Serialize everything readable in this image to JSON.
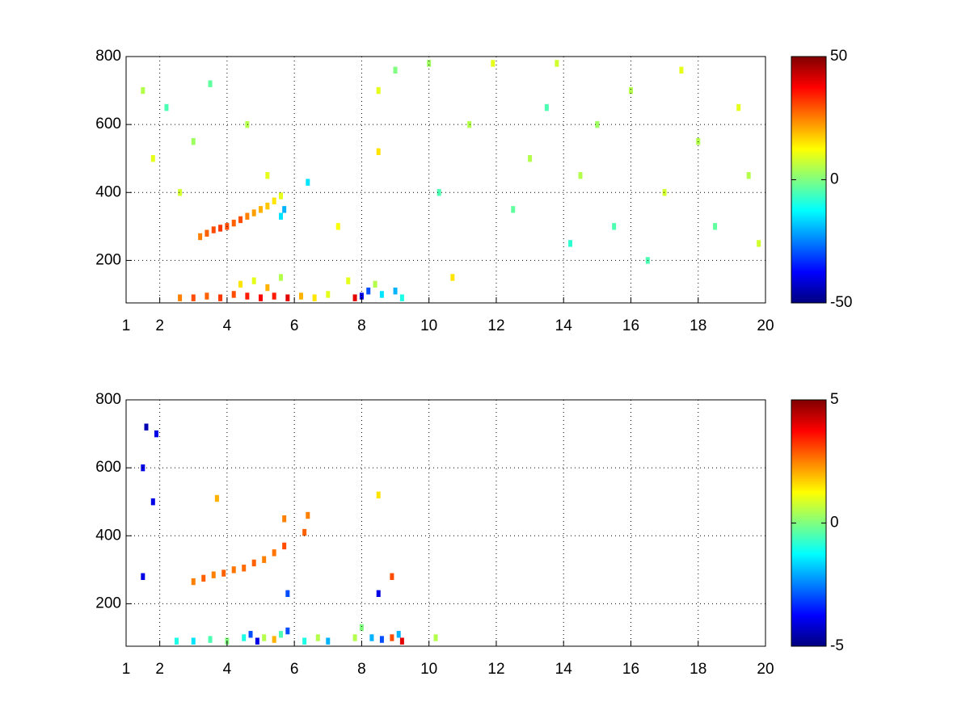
{
  "chart_data": [
    {
      "type": "heatmap",
      "colormap": "jet",
      "grid": true,
      "xlim": [
        1,
        20
      ],
      "ylim": [
        75,
        800
      ],
      "clim": [
        -50,
        50
      ],
      "xticks": [
        1,
        2,
        4,
        6,
        8,
        10,
        12,
        14,
        16,
        18,
        20
      ],
      "yticks": [
        200,
        400,
        600,
        800
      ],
      "cticks": [
        -50,
        0,
        50
      ],
      "x": [
        3.2,
        3.4,
        3.6,
        3.8,
        4.0,
        4.2,
        4.4,
        4.6,
        4.8,
        5.0,
        5.2,
        5.4,
        5.6,
        5.7,
        5.6,
        2.6,
        3.0,
        3.4,
        3.8,
        4.2,
        4.6,
        5.0,
        5.4,
        5.8,
        6.2,
        6.6,
        7.0,
        4.4,
        4.8,
        5.2,
        5.6,
        7.8,
        8.0,
        8.2,
        8.4,
        8.6,
        9.0,
        9.2,
        7.6,
        1.5,
        1.8,
        2.2,
        2.6,
        3.0,
        3.5,
        4.6,
        5.2,
        6.4,
        7.3,
        8.5,
        8.5,
        9.0,
        10.0,
        10.3,
        10.7,
        11.2,
        11.9,
        12.5,
        13.0,
        13.5,
        13.8,
        14.2,
        14.5,
        15.0,
        15.5,
        16.0,
        16.5,
        17.0,
        17.5,
        18.0,
        18.5,
        19.2,
        19.5,
        19.8
      ],
      "y": [
        270,
        280,
        290,
        295,
        300,
        310,
        320,
        330,
        340,
        350,
        360,
        375,
        390,
        350,
        330,
        90,
        90,
        95,
        90,
        100,
        95,
        90,
        95,
        90,
        95,
        90,
        100,
        130,
        140,
        120,
        150,
        90,
        95,
        110,
        130,
        100,
        110,
        90,
        140,
        700,
        500,
        650,
        400,
        550,
        720,
        600,
        450,
        430,
        300,
        520,
        700,
        760,
        780,
        400,
        150,
        600,
        780,
        350,
        500,
        650,
        780,
        250,
        450,
        600,
        300,
        700,
        200,
        400,
        760,
        550,
        300,
        650,
        450,
        250
      ],
      "values": [
        25,
        28,
        30,
        32,
        30,
        28,
        30,
        25,
        22,
        20,
        18,
        15,
        10,
        -20,
        -15,
        25,
        30,
        28,
        32,
        30,
        35,
        38,
        35,
        40,
        20,
        15,
        10,
        15,
        10,
        20,
        5,
        40,
        -40,
        -30,
        5,
        -15,
        -20,
        -10,
        10,
        5,
        10,
        -5,
        8,
        3,
        -3,
        5,
        10,
        -15,
        12,
        15,
        10,
        0,
        3,
        -5,
        15,
        5,
        10,
        -3,
        5,
        -5,
        8,
        -8,
        5,
        3,
        -5,
        5,
        -5,
        8,
        10,
        5,
        -3,
        10,
        5,
        8
      ]
    },
    {
      "type": "heatmap",
      "colormap": "jet",
      "grid": true,
      "xlim": [
        1,
        20
      ],
      "ylim": [
        75,
        800
      ],
      "clim": [
        -5,
        5
      ],
      "xticks": [
        1,
        2,
        4,
        6,
        8,
        10,
        12,
        14,
        16,
        18,
        20
      ],
      "yticks": [
        200,
        400,
        600,
        800
      ],
      "cticks": [
        -5,
        0,
        5
      ],
      "x": [
        3.0,
        3.3,
        3.6,
        3.9,
        4.2,
        4.5,
        4.8,
        5.1,
        5.4,
        5.7,
        5.7,
        6.3,
        6.4,
        3.7,
        8.5,
        8.9,
        8.5,
        5.8,
        1.5,
        1.5,
        1.8,
        1.9,
        1.6,
        2.5,
        3.0,
        3.5,
        4.0,
        4.5,
        4.7,
        4.9,
        5.1,
        5.4,
        5.6,
        5.8,
        6.3,
        6.7,
        7.0,
        7.8,
        8.0,
        8.3,
        8.6,
        8.9,
        9.1,
        9.2,
        10.2
      ],
      "y": [
        265,
        275,
        285,
        290,
        300,
        305,
        320,
        330,
        350,
        370,
        450,
        410,
        460,
        510,
        520,
        280,
        230,
        230,
        600,
        280,
        500,
        700,
        720,
        90,
        90,
        95,
        90,
        100,
        110,
        90,
        100,
        95,
        110,
        120,
        90,
        100,
        90,
        100,
        130,
        100,
        95,
        100,
        110,
        90,
        100
      ],
      "values": [
        2.5,
        2.8,
        2.5,
        2.8,
        2.6,
        2.7,
        2.8,
        2.5,
        2.6,
        3,
        2.5,
        2.8,
        2.5,
        2,
        1.5,
        3,
        -4,
        -3,
        -4,
        -4,
        -4,
        -4,
        -4.5,
        -1,
        -1.5,
        -0.5,
        0,
        -1,
        -3,
        -4,
        0.5,
        2,
        -0.5,
        -3,
        -1,
        0.5,
        -2,
        0.5,
        0,
        -2,
        -3,
        3,
        -2,
        4,
        0.5
      ]
    }
  ]
}
